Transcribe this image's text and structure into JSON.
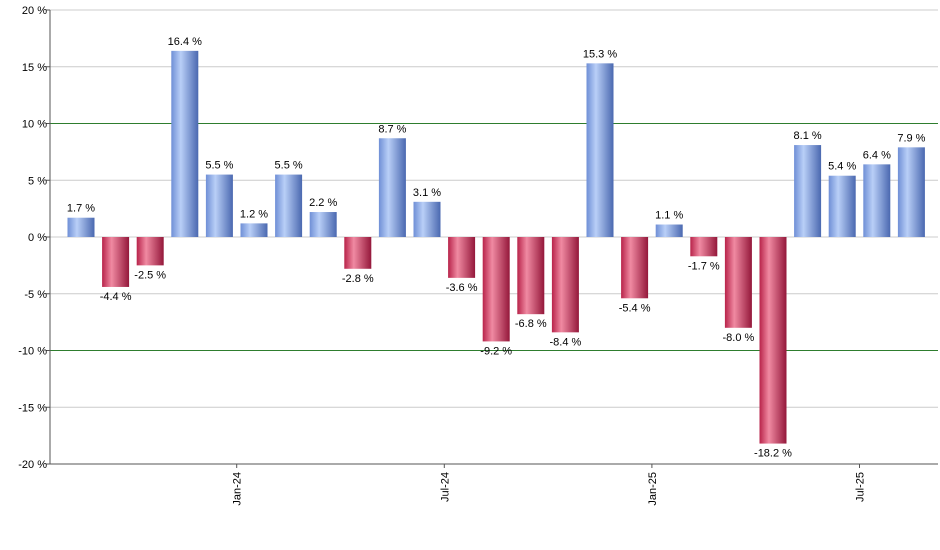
{
  "chart_data": {
    "type": "bar",
    "y_unit_suffix": " %",
    "ylim": [
      -20,
      20
    ],
    "y_ticks": [
      20,
      15,
      10,
      5,
      0,
      -5,
      -10,
      -15,
      -20
    ],
    "y_tick_labels": [
      "20 %",
      "15 %",
      "10 %",
      "5 %",
      "0 %",
      "-5 %",
      "-10 %",
      "-15 %",
      "-20 %"
    ],
    "reference_lines": [
      10,
      -10
    ],
    "grid": true,
    "x_tick_labels": [
      {
        "label": "Jan-24",
        "index": 5
      },
      {
        "label": "Jul-24",
        "index": 11
      },
      {
        "label": "Jan-25",
        "index": 17
      },
      {
        "label": "Jul-25",
        "index": 23
      }
    ],
    "values": [
      1.7,
      -4.4,
      -2.5,
      16.4,
      5.5,
      1.2,
      5.5,
      2.2,
      -2.8,
      8.7,
      3.1,
      -3.6,
      -9.2,
      -6.8,
      -8.4,
      15.3,
      -5.4,
      1.1,
      -1.7,
      -8.0,
      -18.2,
      8.1,
      5.4,
      6.4,
      7.9
    ],
    "data_labels": [
      "1.7 %",
      "-4.4 %",
      "-2.5 %",
      "16.4 %",
      "5.5 %",
      "1.2 %",
      "5.5 %",
      "2.2 %",
      "-2.8 %",
      "8.7 %",
      "3.1 %",
      "-3.6 %",
      "-9.2 %",
      "-6.8 %",
      "-8.4 %",
      "15.3 %",
      "-5.4 %",
      "1.1 %",
      "-1.7 %",
      "-8.0 %",
      "-18.2 %",
      "8.1 %",
      "5.4 %",
      "6.4 %",
      "7.9 %"
    ],
    "colors": {
      "positive": "#7f9fe0",
      "positive_light": "#b7cdf6",
      "positive_dark": "#4f6fb8",
      "negative": "#c8325a",
      "negative_light": "#f08aa0",
      "negative_dark": "#9a1a3c",
      "reference_line": "#2e7d2e",
      "grid": "#cccccc",
      "axis": "#555555"
    }
  }
}
